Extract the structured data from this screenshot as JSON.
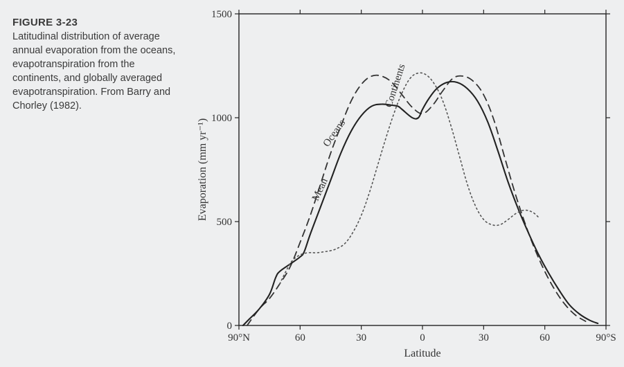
{
  "caption": {
    "figure_number": "FIGURE 3-23",
    "text": "Latitudinal distribution of average annual evaporation from the oceans, evapotranspiration from the continents, and globally averaged evapotranspiration. From Barry and Chorley (1982)."
  },
  "chart": {
    "type": "line",
    "background_color": "#eeeff0",
    "axis_color": "#222222",
    "xlabel": "Latitude",
    "ylabel": "Evaporation (mm yr⁻¹)",
    "label_fontsize": 16,
    "tick_fontsize": 15,
    "x": {
      "domain_deg": [
        90,
        -90
      ],
      "ticks_deg": [
        90,
        60,
        30,
        0,
        -30,
        -60,
        -90
      ],
      "tick_labels": [
        "90°N",
        "60",
        "30",
        "0",
        "30",
        "60",
        "90°S"
      ]
    },
    "y": {
      "lim": [
        0,
        1500
      ],
      "ticks": [
        0,
        500,
        1000,
        1500
      ]
    },
    "series": [
      {
        "name": "Oceans",
        "dash": "10,7",
        "width": 1.8,
        "color": "#333333",
        "label_angle": -55,
        "label_at_index": 8,
        "points": [
          [
            86,
            0
          ],
          [
            80,
            80
          ],
          [
            75,
            130
          ],
          [
            70,
            200
          ],
          [
            65,
            280
          ],
          [
            60,
            400
          ],
          [
            55,
            530
          ],
          [
            50,
            680
          ],
          [
            45,
            830
          ],
          [
            40,
            960
          ],
          [
            35,
            1080
          ],
          [
            30,
            1160
          ],
          [
            25,
            1200
          ],
          [
            20,
            1200
          ],
          [
            15,
            1170
          ],
          [
            10,
            1110
          ],
          [
            5,
            1050
          ],
          [
            0,
            1020
          ],
          [
            -5,
            1060
          ],
          [
            -10,
            1130
          ],
          [
            -15,
            1190
          ],
          [
            -20,
            1200
          ],
          [
            -25,
            1175
          ],
          [
            -30,
            1110
          ],
          [
            -35,
            990
          ],
          [
            -40,
            820
          ],
          [
            -45,
            650
          ],
          [
            -50,
            500
          ],
          [
            -55,
            370
          ],
          [
            -60,
            260
          ],
          [
            -65,
            170
          ],
          [
            -70,
            100
          ],
          [
            -75,
            50
          ],
          [
            -80,
            20
          ]
        ]
      },
      {
        "name": "Mean",
        "dash": "none",
        "width": 2.1,
        "color": "#222222",
        "label_angle": -65,
        "label_at_index": 10,
        "points": [
          [
            88,
            0
          ],
          [
            85,
            30
          ],
          [
            80,
            80
          ],
          [
            75,
            150
          ],
          [
            72,
            230
          ],
          [
            70,
            260
          ],
          [
            65,
            295
          ],
          [
            60,
            330
          ],
          [
            58,
            355
          ],
          [
            55,
            440
          ],
          [
            50,
            570
          ],
          [
            45,
            700
          ],
          [
            40,
            830
          ],
          [
            35,
            935
          ],
          [
            30,
            1010
          ],
          [
            25,
            1055
          ],
          [
            20,
            1065
          ],
          [
            15,
            1060
          ],
          [
            12,
            1055
          ],
          [
            10,
            1040
          ],
          [
            5,
            1000
          ],
          [
            2,
            1000
          ],
          [
            0,
            1040
          ],
          [
            -3,
            1090
          ],
          [
            -7,
            1140
          ],
          [
            -12,
            1170
          ],
          [
            -17,
            1170
          ],
          [
            -22,
            1140
          ],
          [
            -27,
            1080
          ],
          [
            -32,
            980
          ],
          [
            -37,
            840
          ],
          [
            -42,
            690
          ],
          [
            -47,
            560
          ],
          [
            -52,
            445
          ],
          [
            -57,
            340
          ],
          [
            -62,
            250
          ],
          [
            -67,
            170
          ],
          [
            -72,
            100
          ],
          [
            -77,
            55
          ],
          [
            -82,
            25
          ],
          [
            -86,
            10
          ]
        ]
      },
      {
        "name": "Continents",
        "dash": "2,4",
        "width": 1.6,
        "color": "#555555",
        "label_angle": -72,
        "label_at_index": 15,
        "points": [
          [
            70,
            200
          ],
          [
            67,
            260
          ],
          [
            64,
            310
          ],
          [
            60,
            340
          ],
          [
            56,
            350
          ],
          [
            52,
            350
          ],
          [
            48,
            355
          ],
          [
            45,
            360
          ],
          [
            42,
            370
          ],
          [
            38,
            395
          ],
          [
            34,
            450
          ],
          [
            30,
            530
          ],
          [
            26,
            640
          ],
          [
            22,
            770
          ],
          [
            18,
            900
          ],
          [
            14,
            1020
          ],
          [
            10,
            1120
          ],
          [
            6,
            1190
          ],
          [
            2,
            1215
          ],
          [
            -2,
            1205
          ],
          [
            -6,
            1160
          ],
          [
            -10,
            1080
          ],
          [
            -14,
            960
          ],
          [
            -18,
            820
          ],
          [
            -22,
            680
          ],
          [
            -26,
            575
          ],
          [
            -30,
            510
          ],
          [
            -34,
            485
          ],
          [
            -38,
            485
          ],
          [
            -42,
            510
          ],
          [
            -46,
            540
          ],
          [
            -50,
            555
          ],
          [
            -54,
            545
          ],
          [
            -57,
            520
          ]
        ]
      }
    ]
  }
}
